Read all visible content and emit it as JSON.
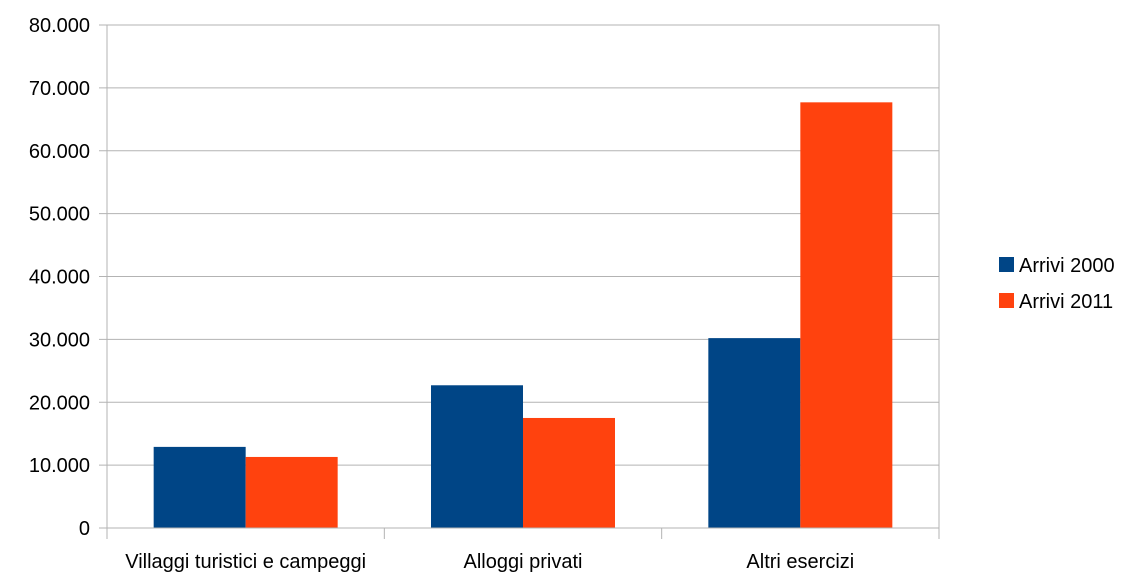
{
  "chart_data": {
    "type": "bar",
    "title": "",
    "xlabel": "",
    "ylabel": "",
    "categories": [
      "Villaggi turistici e campeggi",
      "Alloggi privati",
      "Altri esercizi"
    ],
    "series": [
      {
        "name": "Arrivi 2000",
        "color": "#004586",
        "values": [
          12900,
          22700,
          30200
        ]
      },
      {
        "name": "Arrivi 2011",
        "color": "#ff420e",
        "values": [
          11300,
          17500,
          67700
        ]
      }
    ],
    "ylim": [
      0,
      80000
    ],
    "yticks": [
      0,
      10000,
      20000,
      30000,
      40000,
      50000,
      60000,
      70000,
      80000
    ],
    "ytick_labels": [
      "0",
      "10.000",
      "20.000",
      "30.000",
      "40.000",
      "50.000",
      "60.000",
      "70.000",
      "80.000"
    ],
    "grid": true,
    "legend_position": "right"
  }
}
